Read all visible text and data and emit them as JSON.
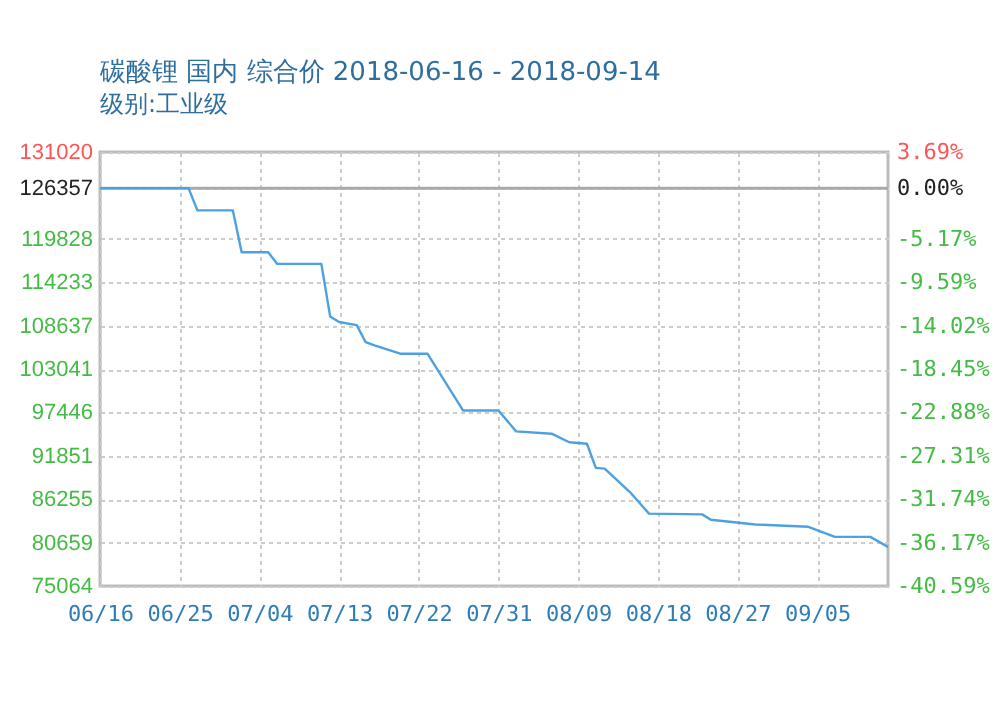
{
  "chart_data": {
    "type": "line",
    "title": "碳酸锂 国内 综合价 2018-06-16 - 2018-09-14",
    "subtitle": "级别:工业级",
    "x": [
      "2018-06-16",
      "2018-06-26",
      "2018-06-27",
      "2018-07-01",
      "2018-07-02",
      "2018-07-05",
      "2018-07-06",
      "2018-07-11",
      "2018-07-12",
      "2018-07-13",
      "2018-07-15",
      "2018-07-16",
      "2018-07-17",
      "2018-07-20",
      "2018-07-23",
      "2018-07-27",
      "2018-07-31",
      "2018-08-02",
      "2018-08-06",
      "2018-08-08",
      "2018-08-10",
      "2018-08-11",
      "2018-08-12",
      "2018-08-15",
      "2018-08-17",
      "2018-08-23",
      "2018-08-24",
      "2018-08-29",
      "2018-09-04",
      "2018-09-07",
      "2018-09-11",
      "2018-09-13"
    ],
    "series": [
      {
        "color": "#4ea1e0",
        "values": [
          126357,
          126357,
          123500,
          123500,
          118100,
          118100,
          116600,
          116600,
          109800,
          109100,
          108700,
          106500,
          106100,
          105000,
          105000,
          97700,
          97700,
          95000,
          94700,
          93600,
          93400,
          90300,
          90200,
          87000,
          84400,
          84300,
          83600,
          83000,
          82700,
          81400,
          81400,
          80100
        ]
      }
    ],
    "xlim": [
      "2018-06-16",
      "2018-09-13"
    ],
    "xticks": [
      {
        "value": "2018-06-16",
        "label": "06/16"
      },
      {
        "value": "2018-06-25",
        "label": "06/25"
      },
      {
        "value": "2018-07-04",
        "label": "07/04"
      },
      {
        "value": "2018-07-13",
        "label": "07/13"
      },
      {
        "value": "2018-07-22",
        "label": "07/22"
      },
      {
        "value": "2018-07-31",
        "label": "07/31"
      },
      {
        "value": "2018-08-09",
        "label": "08/09"
      },
      {
        "value": "2018-08-18",
        "label": "08/18"
      },
      {
        "value": "2018-08-27",
        "label": "08/27"
      },
      {
        "value": "2018-09-05",
        "label": "09/05"
      }
    ],
    "ylim": [
      75064,
      131020
    ],
    "yticks": [
      75064,
      80659,
      86255,
      91851,
      97446,
      103041,
      108637,
      114233,
      119828,
      126357,
      131020
    ],
    "y2lim": [
      -40.59,
      3.69
    ],
    "y2ticks": [
      {
        "value": -40.59,
        "label": "-40.59%"
      },
      {
        "value": -36.17,
        "label": "-36.17%"
      },
      {
        "value": -31.74,
        "label": "-31.74%"
      },
      {
        "value": -27.31,
        "label": "-27.31%"
      },
      {
        "value": -22.88,
        "label": "-22.88%"
      },
      {
        "value": -18.45,
        "label": "-18.45%"
      },
      {
        "value": -14.02,
        "label": "-14.02%"
      },
      {
        "value": -9.59,
        "label": "-9.59%"
      },
      {
        "value": -5.17,
        "label": "-5.17%"
      },
      {
        "value": 0,
        "label": "0.00%"
      },
      {
        "value": 3.69,
        "label": "3.69%"
      }
    ],
    "ref_lines": [
      {
        "axis": "y",
        "value": 126357,
        "color": "#aaaaaa"
      }
    ],
    "grid": true,
    "marker": "none",
    "line_style": "solid"
  }
}
